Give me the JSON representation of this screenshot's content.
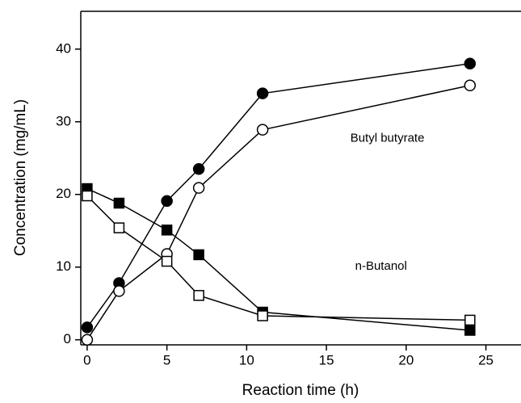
{
  "chart_data": {
    "type": "line",
    "xlabel": "Reaction time (h)",
    "ylabel": "Concentration (mg/mL)",
    "xlim": [
      -0.4,
      27.2
    ],
    "ylim": [
      -0.7,
      45.2
    ],
    "xticks": [
      0,
      5,
      10,
      15,
      20,
      25
    ],
    "yticks": [
      0,
      10,
      20,
      30,
      40
    ],
    "x": [
      0,
      2,
      5,
      7,
      11,
      24
    ],
    "series": [
      {
        "color": "#000000",
        "marker": "circle",
        "marker_fill": "#000000",
        "values": [
          1.7,
          7.8,
          19.1,
          23.5,
          33.9,
          38.0
        ]
      },
      {
        "color": "#000000",
        "marker": "circle",
        "marker_fill": "#ffffff",
        "values": [
          0,
          6.7,
          11.8,
          20.9,
          28.9,
          35.0
        ]
      },
      {
        "color": "#000000",
        "marker": "square",
        "marker_fill": "#000000",
        "values": [
          20.8,
          18.8,
          15.1,
          11.7,
          3.8,
          1.3
        ]
      },
      {
        "color": "#000000",
        "marker": "square",
        "marker_fill": "#ffffff",
        "values": [
          19.8,
          15.4,
          10.8,
          6.1,
          3.3,
          2.7
        ]
      }
    ],
    "annotations": [
      {
        "text": "Butyl butyrate",
        "x": 16.5,
        "y": 27.7
      },
      {
        "text": "n-Butanol",
        "x": 16.8,
        "y": 10.1
      }
    ]
  }
}
